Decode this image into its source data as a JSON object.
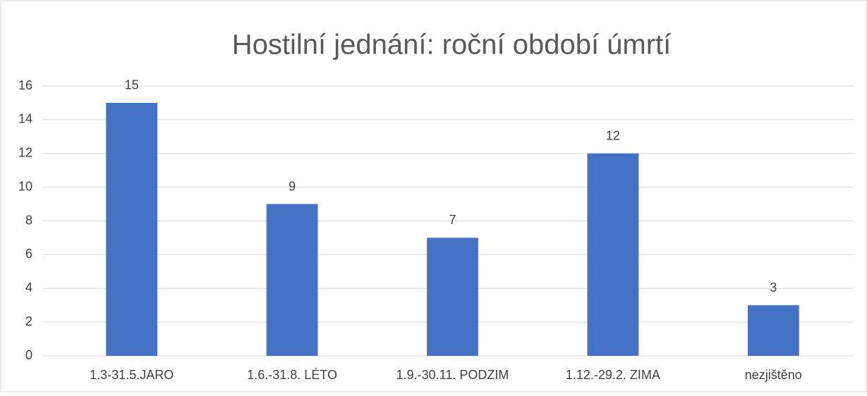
{
  "chart_data": {
    "type": "bar",
    "title": "Hostilní jednání: roční období úmrtí",
    "categories": [
      "1.3-31.5.JARO",
      "1.6.-31.8. LÉTO",
      "1.9.-30.11. PODZIM",
      "1.12.-29.2. ZIMA",
      "nezjištěno"
    ],
    "values": [
      15,
      9,
      7,
      12,
      3
    ],
    "color": "#4472c4",
    "ylim": [
      0,
      16
    ],
    "yticks": [
      0,
      2,
      4,
      6,
      8,
      10,
      12,
      14,
      16
    ],
    "grid": true,
    "data_labels": true
  }
}
